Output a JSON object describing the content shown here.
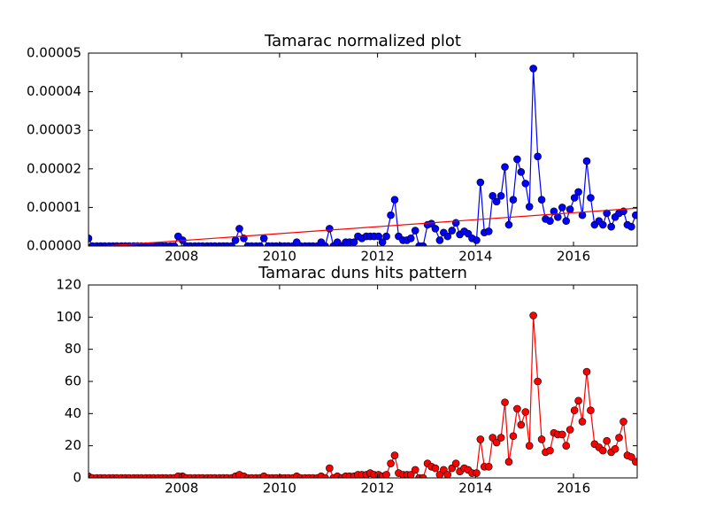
{
  "chart_data": [
    {
      "type": "line",
      "title": "Tamarac normalized plot",
      "x": [
        2006.1,
        2006.18,
        2006.27,
        2006.35,
        2006.43,
        2006.52,
        2006.6,
        2006.68,
        2006.77,
        2006.85,
        2006.93,
        2007.02,
        2007.1,
        2007.18,
        2007.27,
        2007.35,
        2007.43,
        2007.52,
        2007.6,
        2007.68,
        2007.77,
        2007.85,
        2007.93,
        2008.02,
        2008.1,
        2008.18,
        2008.27,
        2008.35,
        2008.43,
        2008.52,
        2008.6,
        2008.68,
        2008.77,
        2008.85,
        2008.93,
        2009.02,
        2009.1,
        2009.18,
        2009.27,
        2009.35,
        2009.43,
        2009.52,
        2009.6,
        2009.68,
        2009.77,
        2009.85,
        2009.93,
        2010.02,
        2010.1,
        2010.18,
        2010.27,
        2010.35,
        2010.43,
        2010.52,
        2010.6,
        2010.68,
        2010.77,
        2010.85,
        2010.93,
        2011.02,
        2011.1,
        2011.18,
        2011.27,
        2011.35,
        2011.43,
        2011.52,
        2011.6,
        2011.68,
        2011.77,
        2011.85,
        2011.93,
        2012.02,
        2012.1,
        2012.18,
        2012.27,
        2012.35,
        2012.43,
        2012.52,
        2012.6,
        2012.68,
        2012.77,
        2012.85,
        2012.93,
        2013.02,
        2013.1,
        2013.18,
        2013.27,
        2013.35,
        2013.43,
        2013.52,
        2013.6,
        2013.68,
        2013.77,
        2013.85,
        2013.93,
        2014.02,
        2014.1,
        2014.18,
        2014.27,
        2014.35,
        2014.43,
        2014.52,
        2014.6,
        2014.68,
        2014.77,
        2014.85,
        2014.93,
        2015.02,
        2015.1,
        2015.18,
        2015.27,
        2015.35,
        2015.43,
        2015.52,
        2015.6,
        2015.68,
        2015.77,
        2015.85,
        2015.93,
        2016.02,
        2016.1,
        2016.18,
        2016.27,
        2016.35,
        2016.43,
        2016.52,
        2016.6,
        2016.68,
        2016.77,
        2016.85,
        2016.93,
        2017.02,
        2017.1,
        2017.18,
        2017.27
      ],
      "series": [
        {
          "color": "#0000ff",
          "values": [
            2e-06,
            0,
            0,
            0,
            0,
            0,
            0,
            0,
            0,
            0,
            0,
            0,
            0,
            0,
            0,
            0,
            0,
            0,
            0,
            0,
            0,
            0,
            2.5e-06,
            1.5e-06,
            0,
            0,
            0,
            0,
            0,
            0,
            0,
            0,
            0,
            0,
            0,
            0,
            1.5e-06,
            4.5e-06,
            2e-06,
            0,
            0,
            0,
            0,
            2e-06,
            0,
            0,
            0,
            0,
            0,
            0,
            0,
            1e-06,
            0,
            0,
            0,
            0,
            0,
            1e-06,
            0,
            4.5e-06,
            0,
            1e-06,
            0,
            1e-06,
            1e-06,
            1e-06,
            2.5e-06,
            2e-06,
            2.5e-06,
            2.5e-06,
            2.5e-06,
            2.5e-06,
            1e-06,
            2.5e-06,
            8e-06,
            1.2e-05,
            2.5e-06,
            1.5e-06,
            1.5e-06,
            2e-06,
            4e-06,
            0,
            0,
            5.5e-06,
            5.8e-06,
            4.5e-06,
            1.5e-06,
            3.5e-06,
            2.5e-06,
            4e-06,
            6e-06,
            3e-06,
            3.8e-06,
            3.2e-06,
            2e-06,
            1.5e-06,
            1.65e-05,
            3.5e-06,
            3.8e-06,
            1.3e-05,
            1.15e-05,
            1.3e-05,
            2.05e-05,
            5.5e-06,
            1.2e-05,
            2.25e-05,
            1.92e-05,
            1.62e-05,
            1.02e-05,
            4.6e-05,
            2.32e-05,
            1.2e-05,
            7e-06,
            6.5e-06,
            9e-06,
            7.5e-06,
            1e-05,
            6.5e-06,
            9.5e-06,
            1.25e-05,
            1.4e-05,
            8e-06,
            2.2e-05,
            1.25e-05,
            5.5e-06,
            6.5e-06,
            5.5e-06,
            8.5e-06,
            5e-06,
            7.5e-06,
            8.5e-06,
            9e-06,
            5.5e-06,
            5e-06,
            8e-06
          ]
        }
      ],
      "trend": {
        "color": "#ff0000",
        "x": [
          2006.1,
          2017.3
        ],
        "values": [
          -3e-07,
          9.8e-06
        ]
      },
      "xlim": [
        2006.1,
        2017.3
      ],
      "xticks": [
        2008,
        2010,
        2012,
        2014,
        2016
      ],
      "ylim": [
        0,
        5e-05
      ],
      "yticks": [
        {
          "value": 0,
          "label": "0.00000"
        },
        1e-05,
        2e-05,
        3e-05,
        4e-05,
        5e-05
      ]
    },
    {
      "type": "line",
      "title": "Tamarac duns hits pattern",
      "x": [
        2006.1,
        2006.18,
        2006.27,
        2006.35,
        2006.43,
        2006.52,
        2006.6,
        2006.68,
        2006.77,
        2006.85,
        2006.93,
        2007.02,
        2007.1,
        2007.18,
        2007.27,
        2007.35,
        2007.43,
        2007.52,
        2007.6,
        2007.68,
        2007.77,
        2007.85,
        2007.93,
        2008.02,
        2008.1,
        2008.18,
        2008.27,
        2008.35,
        2008.43,
        2008.52,
        2008.6,
        2008.68,
        2008.77,
        2008.85,
        2008.93,
        2009.02,
        2009.1,
        2009.18,
        2009.27,
        2009.35,
        2009.43,
        2009.52,
        2009.6,
        2009.68,
        2009.77,
        2009.85,
        2009.93,
        2010.02,
        2010.1,
        2010.18,
        2010.27,
        2010.35,
        2010.43,
        2010.52,
        2010.6,
        2010.68,
        2010.77,
        2010.85,
        2010.93,
        2011.02,
        2011.1,
        2011.18,
        2011.27,
        2011.35,
        2011.43,
        2011.52,
        2011.6,
        2011.68,
        2011.77,
        2011.85,
        2011.93,
        2012.02,
        2012.1,
        2012.18,
        2012.27,
        2012.35,
        2012.43,
        2012.52,
        2012.6,
        2012.68,
        2012.77,
        2012.85,
        2012.93,
        2013.02,
        2013.1,
        2013.18,
        2013.27,
        2013.35,
        2013.43,
        2013.52,
        2013.6,
        2013.68,
        2013.77,
        2013.85,
        2013.93,
        2014.02,
        2014.1,
        2014.18,
        2014.27,
        2014.35,
        2014.43,
        2014.52,
        2014.6,
        2014.68,
        2014.77,
        2014.85,
        2014.93,
        2015.02,
        2015.1,
        2015.18,
        2015.27,
        2015.35,
        2015.43,
        2015.52,
        2015.6,
        2015.68,
        2015.77,
        2015.85,
        2015.93,
        2016.02,
        2016.1,
        2016.18,
        2016.27,
        2016.35,
        2016.43,
        2016.52,
        2016.6,
        2016.68,
        2016.77,
        2016.85,
        2016.93,
        2017.02,
        2017.1,
        2017.18,
        2017.27
      ],
      "series": [
        {
          "color": "#ff0000",
          "values": [
            1,
            0,
            0,
            0,
            0,
            0,
            0,
            0,
            0,
            0,
            0,
            0,
            0,
            0,
            0,
            0,
            0,
            0,
            0,
            0,
            0,
            0,
            1,
            1,
            0,
            0,
            0,
            0,
            0,
            0,
            0,
            0,
            0,
            0,
            0,
            0,
            1,
            2,
            1,
            0,
            0,
            0,
            0,
            1,
            0,
            0,
            0,
            0,
            0,
            0,
            0,
            1,
            0,
            0,
            0,
            0,
            0,
            1,
            0,
            6,
            0,
            1,
            0,
            1,
            1,
            1,
            2,
            2,
            2,
            3,
            2,
            2,
            1,
            2,
            9,
            14,
            3,
            2,
            2,
            2,
            5,
            0,
            0,
            9,
            7,
            6,
            2,
            5,
            2,
            6,
            9,
            4,
            6,
            5,
            3,
            3,
            24,
            7,
            7,
            25,
            22,
            25,
            47,
            10,
            26,
            43,
            33,
            41,
            20,
            101,
            60,
            24,
            16,
            17,
            28,
            27,
            27,
            20,
            30,
            42,
            48,
            35,
            66,
            42,
            21,
            19,
            17,
            23,
            16,
            18,
            25,
            35,
            14,
            13,
            10
          ]
        }
      ],
      "xlim": [
        2006.1,
        2017.3
      ],
      "xticks": [
        2008,
        2010,
        2012,
        2014,
        2016
      ],
      "ylim": [
        0,
        120
      ],
      "yticks": [
        0,
        20,
        40,
        60,
        80,
        100,
        120
      ]
    }
  ]
}
